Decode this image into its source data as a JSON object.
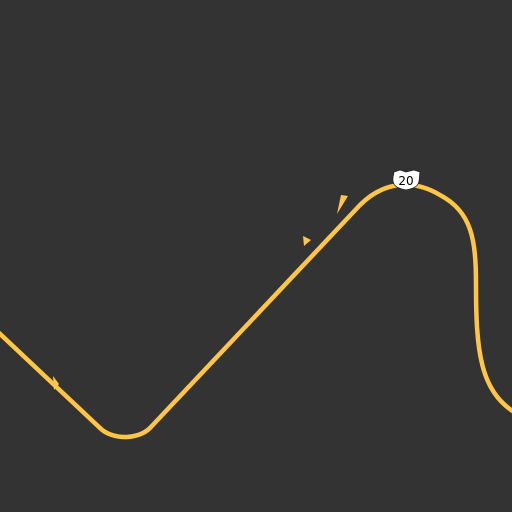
{
  "map": {
    "background_color": "#333333",
    "road": {
      "color": "#ffc545",
      "route_shield": {
        "number": "20",
        "shape": "us-highway-shield",
        "fill": "#ffffff",
        "text_color": "#000000"
      },
      "direction_arrows": [
        "arrow-icon",
        "arrow-icon",
        "arrow-icon"
      ]
    }
  }
}
